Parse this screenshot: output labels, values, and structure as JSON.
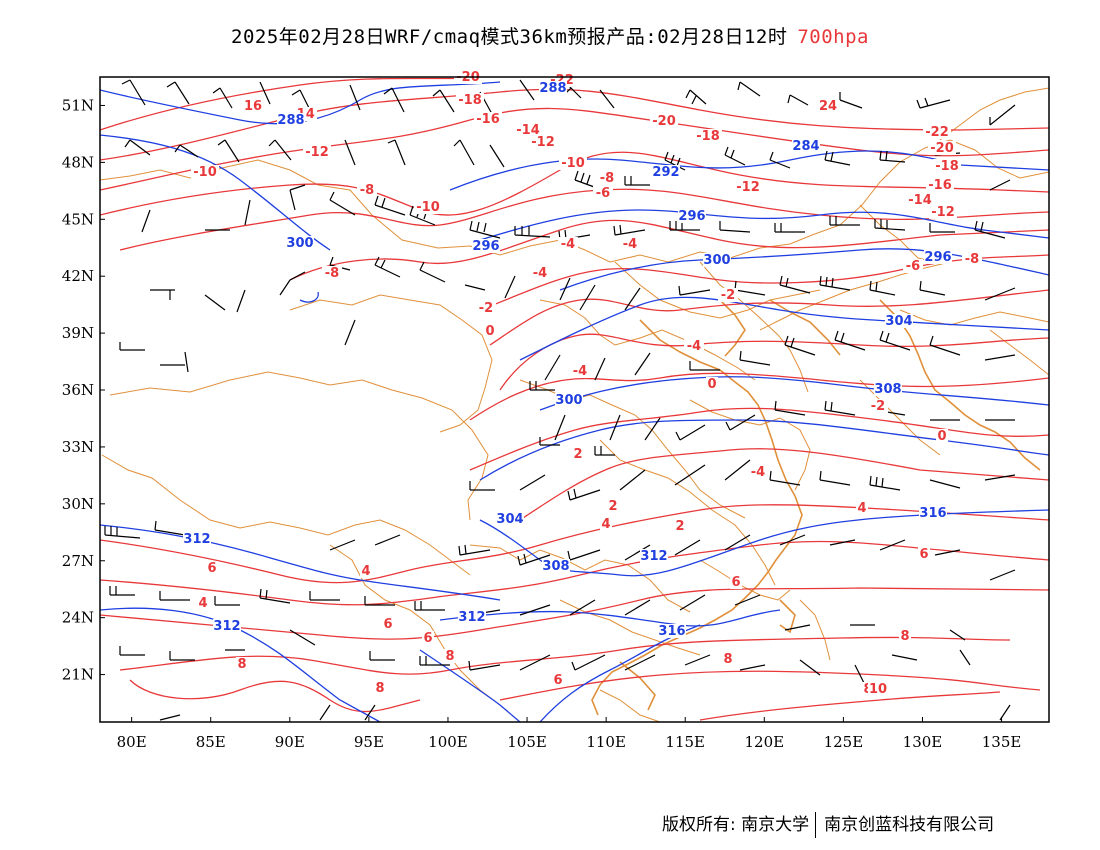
{
  "title": {
    "main": "2025年02月28日WRF/cmaq模式36km预报产品:02月28日12时",
    "level": "700hpa"
  },
  "map": {
    "lon_range": [
      78,
      138
    ],
    "lat_range": [
      18.5,
      52.5
    ],
    "lon_ticks": [
      "80E",
      "85E",
      "90E",
      "95E",
      "100E",
      "105E",
      "110E",
      "115E",
      "120E",
      "125E",
      "130E",
      "135E"
    ],
    "lat_ticks": [
      "51N",
      "48N",
      "45N",
      "42N",
      "39N",
      "36N",
      "33N",
      "30N",
      "27N",
      "24N",
      "21N"
    ],
    "colors": {
      "temperature": "#e8383a",
      "height": "#1f3fe0",
      "border": "#e0903a",
      "wind": "#000000"
    }
  },
  "temperature_labels": [
    "-20",
    "-22",
    "16",
    "-14",
    "-18",
    "-16",
    "-14",
    "24",
    "-20",
    "-18",
    "-12",
    "-22",
    "-12",
    "-10",
    "-10",
    "-8",
    "-6",
    "-20",
    "-12",
    "-18",
    "-10",
    "-16",
    "-8",
    "-14",
    "-4",
    "-4",
    "-12",
    "-4",
    "-6",
    "-8",
    "-8",
    "-2",
    "0",
    "-4",
    "-2",
    "-4",
    "0",
    "-2",
    "2",
    "-4",
    "0",
    "2",
    "2",
    "4",
    "4",
    "6",
    "4",
    "6",
    "4",
    "6",
    "6",
    "6",
    "8",
    "8",
    "8",
    "6",
    "8",
    "8",
    "8",
    "10"
  ],
  "height_labels": [
    "288",
    "288",
    "300",
    "284",
    "292",
    "296",
    "296",
    "300",
    "296",
    "304",
    "308",
    "300",
    "312",
    "312",
    "304",
    "308",
    "312",
    "316",
    "316",
    "312"
  ],
  "footer": {
    "left": "版权所有: 南京大学",
    "right": "南京创蓝科技有限公司"
  }
}
